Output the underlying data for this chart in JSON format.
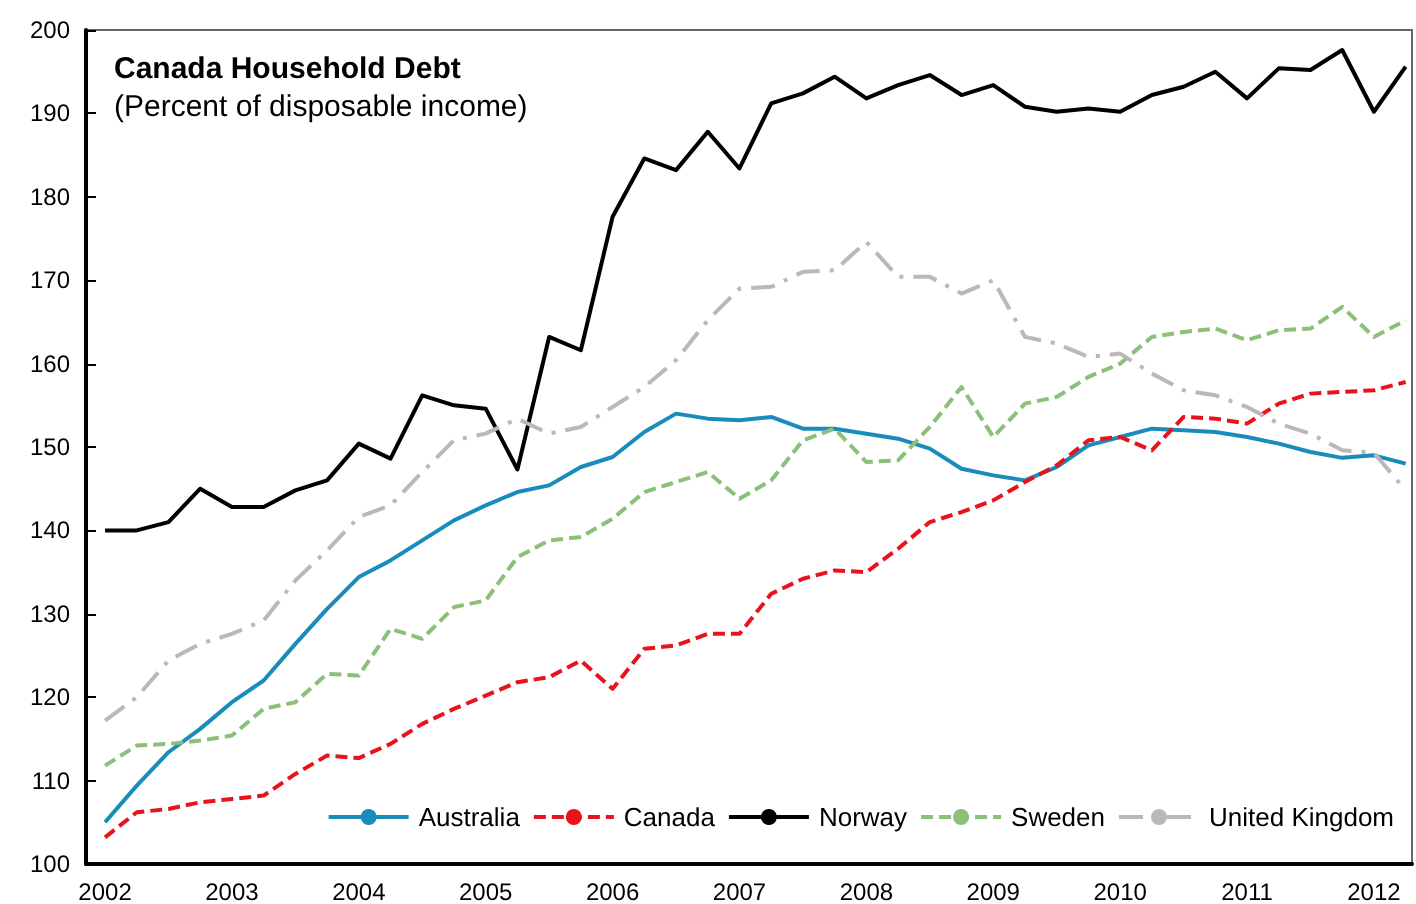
{
  "chart_data": {
    "type": "line",
    "title": "Canada Household Debt",
    "subtitle": "(Percent of disposable income)",
    "x": [
      2002,
      2002.25,
      2002.5,
      2002.75,
      2003,
      2003.25,
      2003.5,
      2003.75,
      2004,
      2004.25,
      2004.5,
      2004.75,
      2005,
      2005.25,
      2005.5,
      2005.75,
      2006,
      2006.25,
      2006.5,
      2006.75,
      2007,
      2007.25,
      2007.5,
      2007.75,
      2008,
      2008.25,
      2008.5,
      2008.75,
      2009,
      2009.25,
      2009.5,
      2009.75,
      2010,
      2010.25,
      2010.5,
      2010.75,
      2011,
      2011.25,
      2011.5,
      2011.75,
      2012,
      2012.25
    ],
    "series": [
      {
        "name": "Australia",
        "color": "#1a8cbc",
        "line_style": "solid",
        "values": [
          105.0,
          109.4,
          113.4,
          116.2,
          119.4,
          122,
          126.4,
          130.6,
          134.4,
          136.4,
          138.8,
          141.2,
          143,
          144.6,
          145.4,
          147.6,
          148.8,
          151.8,
          154,
          153.4,
          153.2,
          153.6,
          152.2,
          152.2,
          151.6,
          151,
          149.8,
          147.4,
          146.6,
          146,
          147.6,
          150.2,
          151.2,
          152.2,
          152,
          151.8,
          151.2,
          150.4,
          149.4,
          148.7,
          149,
          148
        ]
      },
      {
        "name": "Canada",
        "color": "#e8141c",
        "line_style": "dashed",
        "values": [
          103.2,
          106.2,
          106.6,
          107.4,
          107.8,
          108.2,
          110.8,
          113,
          112.7,
          114.4,
          116.8,
          118.6,
          120.2,
          121.8,
          122.4,
          124.4,
          121,
          125.8,
          126.2,
          127.6,
          127.6,
          132.4,
          134.2,
          135.2,
          135,
          137.8,
          141,
          142.2,
          143.6,
          145.8,
          147.8,
          150.8,
          151.2,
          149.6,
          153.6,
          153.4,
          152.8,
          155.2,
          156.4,
          156.6,
          156.8,
          157.8
        ]
      },
      {
        "name": "Norway",
        "color": "#000000",
        "line_style": "solid",
        "values": [
          140,
          140,
          141,
          145,
          142.8,
          142.8,
          144.8,
          146,
          150.4,
          148.6,
          156.2,
          155,
          154.6,
          147.3,
          163.2,
          161.6,
          177.6,
          184.6,
          183.2,
          187.8,
          183.4,
          191.2,
          192.4,
          194.4,
          191.8,
          193.4,
          194.6,
          192.2,
          193.4,
          190.8,
          190.2,
          190.6,
          190.2,
          192.2,
          193.2,
          195,
          191.8,
          195.4,
          195.2,
          197.6,
          190.2,
          195.6
        ]
      },
      {
        "name": "Sweden",
        "color": "#8cc07a",
        "line_style": "dashed",
        "values": [
          111.8,
          114.2,
          114.4,
          114.8,
          115.4,
          118.6,
          119.4,
          122.8,
          122.6,
          128.2,
          127,
          130.8,
          131.6,
          136.8,
          138.8,
          139.2,
          141.4,
          144.6,
          145.8,
          147,
          143.8,
          146,
          150.8,
          152.2,
          148.2,
          148.4,
          152.4,
          157.2,
          151.2,
          155.2,
          156,
          158.4,
          160,
          163.2,
          163.8,
          164.2,
          162.8,
          164,
          164.2,
          166.8,
          163.2,
          165.2
        ]
      },
      {
        "name": "United Kingdom",
        "color": "#b9b9b9",
        "line_style": "dashdot",
        "values": [
          117.2,
          120,
          124.4,
          126.4,
          127.6,
          129.2,
          134,
          137.6,
          141.6,
          143,
          147,
          150.8,
          151.6,
          153.4,
          151.6,
          152.4,
          154.8,
          157.2,
          160.4,
          165.2,
          169,
          169.2,
          171,
          171.2,
          174.6,
          170.4,
          170.4,
          168.4,
          170,
          163.2,
          162.4,
          160.8,
          161.2,
          158.8,
          156.8,
          156.2,
          154.8,
          152.8,
          151.6,
          149.6,
          149.3,
          144.8
        ]
      }
    ],
    "xlim": [
      2001.85,
      2012.3
    ],
    "xticks": [
      2002,
      2003,
      2004,
      2005,
      2006,
      2007,
      2008,
      2009,
      2010,
      2011,
      2012
    ],
    "ylim": [
      100,
      200
    ],
    "yticks": [
      100,
      110,
      120,
      130,
      140,
      150,
      160,
      170,
      180,
      190,
      200
    ],
    "grid": false,
    "legend": "bottom right",
    "marker": "none"
  }
}
